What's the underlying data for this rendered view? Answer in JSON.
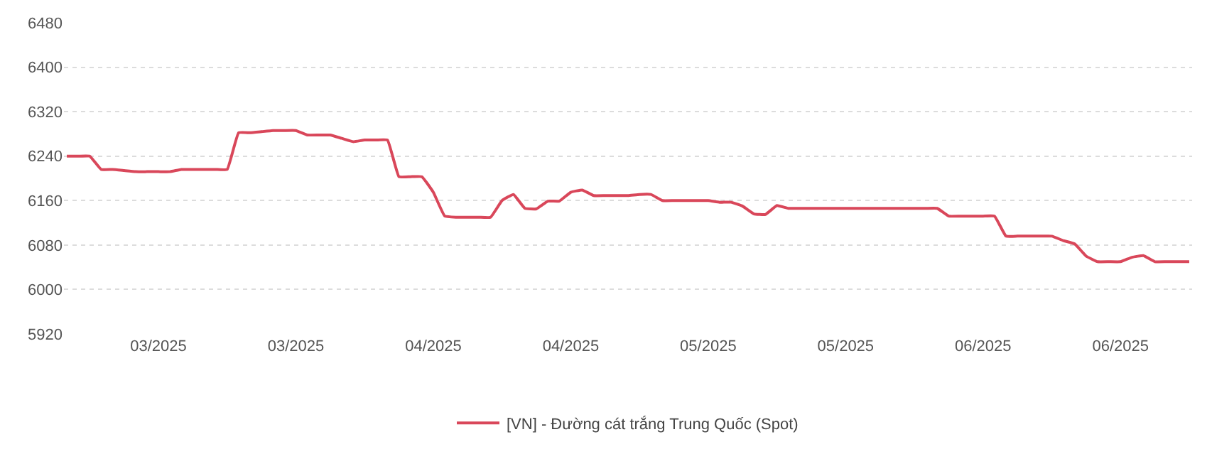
{
  "chart_data": {
    "type": "line",
    "categories": [
      null,
      null,
      null,
      null,
      null,
      null,
      null,
      null,
      "03/2025",
      null,
      null,
      null,
      null,
      null,
      null,
      null,
      null,
      null,
      null,
      null,
      "03/2025",
      null,
      null,
      null,
      null,
      null,
      null,
      null,
      null,
      null,
      null,
      null,
      "04/2025",
      null,
      null,
      null,
      null,
      null,
      null,
      null,
      null,
      null,
      null,
      null,
      "04/2025",
      null,
      null,
      null,
      null,
      null,
      null,
      null,
      null,
      null,
      null,
      null,
      "05/2025",
      null,
      null,
      null,
      null,
      null,
      null,
      null,
      null,
      null,
      null,
      null,
      "05/2025",
      null,
      null,
      null,
      null,
      null,
      null,
      null,
      null,
      null,
      null,
      null,
      "06/2025",
      null,
      null,
      null,
      null,
      null,
      null,
      null,
      null,
      null,
      null,
      null,
      "06/2025",
      null,
      null,
      null,
      null,
      null,
      null
    ],
    "series": [
      {
        "name": "[VN] - Đường cát trắng Trung Quốc (Spot)",
        "color": "#d9475a",
        "values": [
          6240,
          6240,
          6240,
          6216,
          6216,
          6214,
          6212,
          6212,
          6212,
          6212,
          6216,
          6216,
          6216,
          6216,
          6216,
          6282,
          6282,
          6284,
          6286,
          6286,
          6286,
          6278,
          6278,
          6278,
          6272,
          6266,
          6269,
          6269,
          6269,
          6203,
          6203,
          6203,
          6175,
          6132,
          6130,
          6130,
          6130,
          6130,
          6160,
          6171,
          6146,
          6145,
          6159,
          6159,
          6175,
          6179,
          6169,
          6169,
          6169,
          6169,
          6171,
          6171,
          6160,
          6160,
          6160,
          6160,
          6160,
          6157,
          6157,
          6150,
          6136,
          6135,
          6151,
          6146,
          6146,
          6146,
          6146,
          6146,
          6146,
          6146,
          6146,
          6146,
          6146,
          6146,
          6146,
          6146,
          6146,
          6132,
          6132,
          6132,
          6132,
          6132,
          6096,
          6096,
          6096,
          6096,
          6096,
          6088,
          6082,
          6060,
          6050,
          6050,
          6050,
          6058,
          6061,
          6050,
          6050,
          6050,
          6050
        ]
      }
    ],
    "ylim": [
      5920,
      6480
    ],
    "yticks": [
      5920,
      6000,
      6080,
      6160,
      6240,
      6320,
      6400,
      6480
    ],
    "grid": "y",
    "legend": "bottom",
    "marker": "none",
    "line_style": "solid"
  }
}
